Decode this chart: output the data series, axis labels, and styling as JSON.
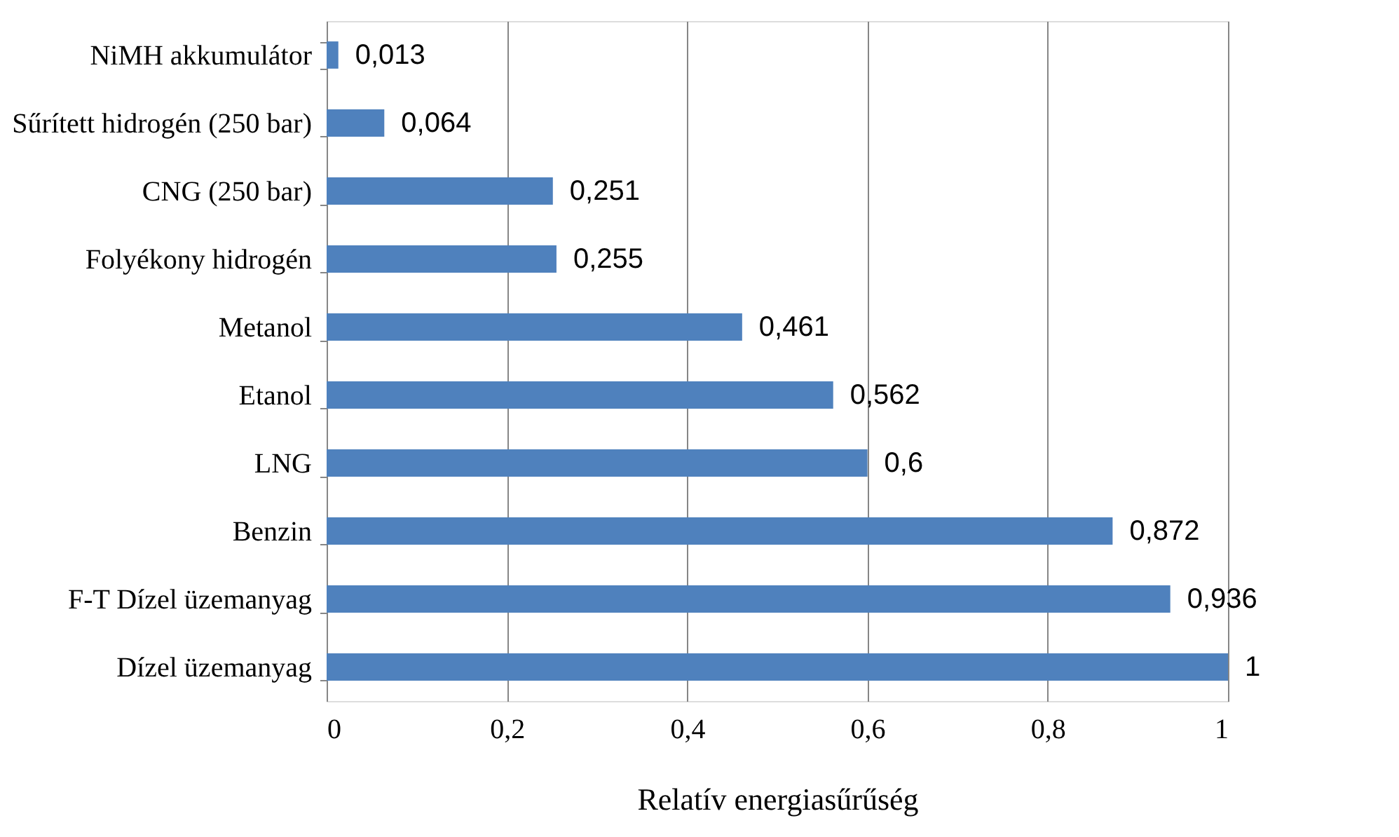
{
  "chart_data": {
    "type": "bar",
    "orientation": "horizontal",
    "xlabel": "Relatív energiasűrűség",
    "categories": [
      "NiMH akkumulátor",
      "Sűrített hidrogén (250 bar)",
      "CNG (250 bar)",
      "Folyékony hidrogén",
      "Metanol",
      "Etanol",
      "LNG",
      "Benzin",
      "F-T Dízel üzemanyag",
      "Dízel üzemanyag"
    ],
    "values": [
      0.013,
      0.064,
      0.251,
      0.255,
      0.461,
      0.562,
      0.6,
      0.872,
      0.936,
      1
    ],
    "value_labels": [
      "0,013",
      "0,064",
      "0,251",
      "0,255",
      "0,461",
      "0,562",
      "0,6",
      "0,872",
      "0,936",
      "1"
    ],
    "color": "#4f81bd",
    "xlim": [
      0,
      1
    ],
    "xticks": [
      0,
      {
        "value": 0.2,
        "label": "0,2"
      },
      {
        "value": 0.4,
        "label": "0,4"
      },
      {
        "value": 0.6,
        "label": "0,6"
      },
      {
        "value": 0.8,
        "label": "0,8"
      },
      1
    ],
    "grid": "x"
  }
}
